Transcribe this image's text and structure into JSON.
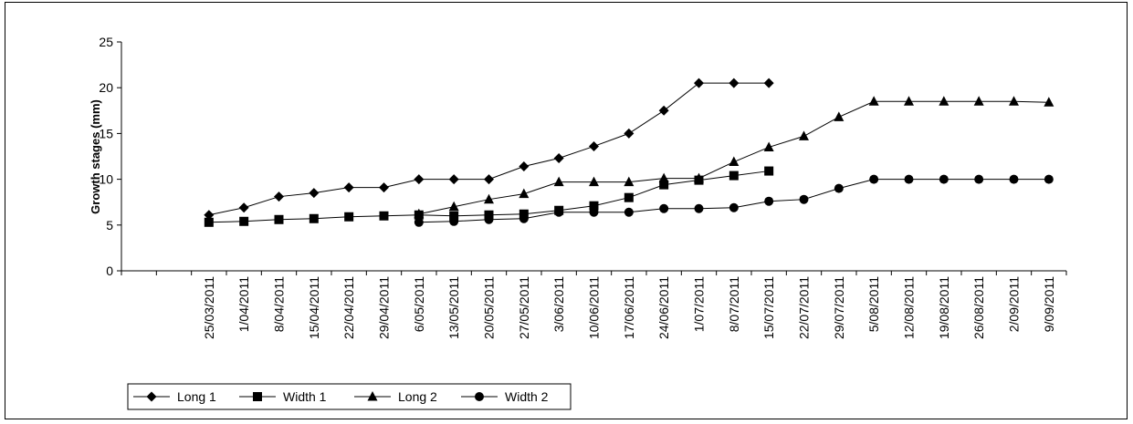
{
  "chart_data": {
    "type": "line",
    "title": "",
    "xlabel": "",
    "ylabel": "Growth stages (mm)",
    "ylim": [
      0,
      25
    ],
    "yticks": [
      0,
      5,
      10,
      15,
      20,
      25
    ],
    "grid": false,
    "legend_position": "bottom-left",
    "categories": [
      "25/03/2011",
      "1/04/2011",
      "8/04/2011",
      "15/04/2011",
      "22/04/2011",
      "29/04/2011",
      "6/05/2011",
      "13/05/2011",
      "20/05/2011",
      "27/05/2011",
      "3/06/2011",
      "10/06/2011",
      "17/06/2011",
      "24/06/2011",
      "1/07/2011",
      "8/07/2011",
      "15/07/2011",
      "22/07/2011",
      "29/07/2011",
      "5/08/2011",
      "12/08/2011",
      "19/08/2011",
      "26/08/2011",
      "2/09/2011",
      "9/09/2011"
    ],
    "series": [
      {
        "name": "Long 1",
        "marker": "diamond",
        "values": [
          6.1,
          6.9,
          8.1,
          8.5,
          9.1,
          9.1,
          10.0,
          10.0,
          10.0,
          11.4,
          12.3,
          13.6,
          15.0,
          17.5,
          20.5,
          20.5,
          20.5,
          null,
          null,
          null,
          null,
          null,
          null,
          null,
          null
        ]
      },
      {
        "name": "Width 1",
        "marker": "square",
        "values": [
          5.3,
          5.4,
          5.6,
          5.7,
          5.9,
          6.0,
          6.1,
          6.0,
          6.1,
          6.2,
          6.6,
          7.1,
          8.0,
          9.4,
          9.9,
          10.4,
          10.9,
          null,
          null,
          null,
          null,
          null,
          null,
          null,
          null
        ]
      },
      {
        "name": "Long 2",
        "marker": "triangle",
        "values": [
          null,
          null,
          null,
          null,
          null,
          null,
          6.2,
          7.0,
          7.8,
          8.4,
          9.7,
          9.7,
          9.7,
          10.1,
          10.1,
          11.9,
          13.5,
          14.7,
          16.8,
          18.5,
          18.5,
          18.5,
          18.5,
          18.5,
          18.4
        ]
      },
      {
        "name": "Width 2",
        "marker": "circle",
        "values": [
          null,
          null,
          null,
          null,
          null,
          null,
          5.3,
          5.4,
          5.6,
          5.7,
          6.4,
          6.4,
          6.4,
          6.8,
          6.8,
          6.9,
          7.6,
          7.8,
          9.0,
          10.0,
          10.0,
          10.0,
          10.0,
          10.0,
          10.0
        ]
      }
    ]
  }
}
